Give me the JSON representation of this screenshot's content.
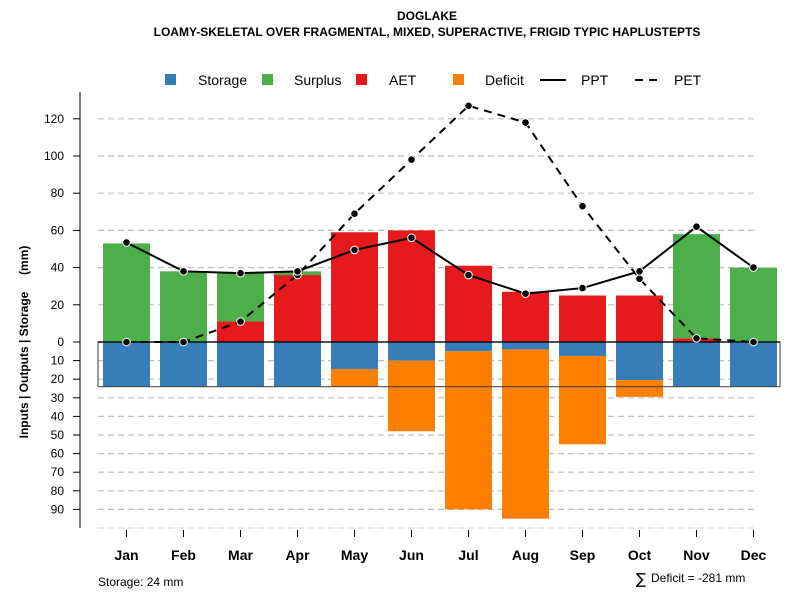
{
  "chart_data": {
    "type": "bar",
    "title": "DOGLAKE",
    "subtitle": "LOAMY-SKELETAL OVER FRAGMENTAL, MIXED, SUPERACTIVE, FRIGID TYPIC HAPLUSTEPTS",
    "xlabel": "",
    "ylabel": "Inputs | Outputs | Storage     (mm)",
    "categories": [
      "Jan",
      "Feb",
      "Mar",
      "Apr",
      "May",
      "Jun",
      "Jul",
      "Aug",
      "Sep",
      "Oct",
      "Nov",
      "Dec"
    ],
    "ylim": [
      -100,
      130
    ],
    "yticks_positive": [
      0,
      20,
      40,
      60,
      80,
      100,
      120
    ],
    "yticks_negative": [
      10,
      20,
      30,
      40,
      50,
      60,
      70,
      80,
      90
    ],
    "grid": true,
    "legend_position": "top",
    "legend": [
      {
        "label": "Storage",
        "kind": "box",
        "color": "#377EB8"
      },
      {
        "label": "Surplus",
        "kind": "box",
        "color": "#4DAF4A"
      },
      {
        "label": "AET",
        "kind": "box",
        "color": "#E41A1C"
      },
      {
        "label": "Deficit",
        "kind": "box",
        "color": "#FF7F00"
      },
      {
        "label": "PPT",
        "kind": "line-solid",
        "color": "#000000"
      },
      {
        "label": "PET",
        "kind": "line-dashed",
        "color": "#000000"
      }
    ],
    "series": [
      {
        "name": "AET",
        "color": "#E41A1C",
        "values": [
          0,
          0,
          11,
          36,
          59,
          60,
          41,
          27,
          25,
          25,
          2,
          0
        ]
      },
      {
        "name": "Surplus",
        "color": "#4DAF4A",
        "values": [
          53,
          38,
          26,
          2,
          0,
          0,
          0,
          0,
          0,
          0,
          56,
          40
        ]
      },
      {
        "name": "Storage",
        "color": "#377EB8",
        "values": [
          24,
          24,
          24,
          24,
          14.5,
          10,
          5,
          4,
          7.5,
          20.5,
          24,
          24
        ]
      },
      {
        "name": "Deficit",
        "color": "#FF7F00",
        "values": [
          0,
          0,
          0,
          0,
          9.5,
          38,
          85,
          91,
          47.5,
          9,
          0,
          0
        ]
      },
      {
        "name": "PPT",
        "color": "#000000",
        "values": [
          53.5,
          38,
          37,
          38,
          49.5,
          56,
          36,
          26,
          29,
          38,
          62,
          40
        ]
      },
      {
        "name": "PET",
        "color": "#000000",
        "values": [
          0,
          0,
          11,
          36,
          69,
          98,
          127,
          118,
          73,
          34,
          2,
          0
        ]
      }
    ],
    "storage_capacity": 24,
    "annotations": {
      "storage": "Storage: 24 mm",
      "deficit_sum_symbol": "∑",
      "deficit_sum": "Deficit = -281 mm"
    }
  }
}
